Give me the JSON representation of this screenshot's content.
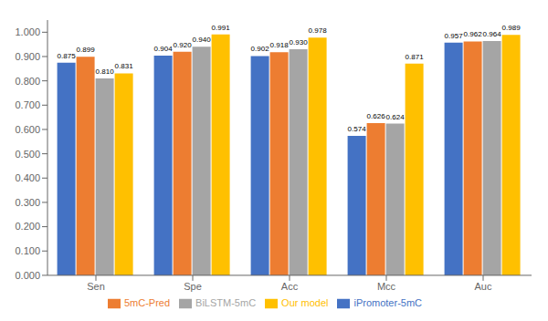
{
  "chart_data": {
    "type": "bar",
    "categories": [
      "Sen",
      "Spe",
      "Acc",
      "Mcc",
      "Auc"
    ],
    "series": [
      {
        "name": "iPromoter-5mC",
        "color": "#4472C4",
        "values": [
          0.875,
          0.904,
          0.902,
          0.574,
          0.957
        ],
        "value_labels": [
          "0.875",
          "0.904",
          "0.902",
          "0.574",
          "0.957"
        ]
      },
      {
        "name": "5mC-Pred",
        "color": "#ED7D31",
        "values": [
          0.899,
          0.92,
          0.918,
          0.626,
          0.962
        ],
        "value_labels": [
          "0.899",
          "0.920",
          "0.918",
          "0.626",
          "0.962"
        ]
      },
      {
        "name": "BiLSTM-5mC",
        "color": "#A5A5A5",
        "values": [
          0.81,
          0.94,
          0.93,
          0.624,
          0.964
        ],
        "value_labels": [
          "0.810",
          "0.940",
          "0.930",
          "0.624",
          "0.964"
        ]
      },
      {
        "name": "Our model",
        "color": "#FFC000",
        "values": [
          0.831,
          0.991,
          0.978,
          0.871,
          0.989
        ],
        "value_labels": [
          "0.831",
          "0.991",
          "0.978",
          "0.871",
          "0.989"
        ]
      }
    ],
    "ylim": [
      0.0,
      1.05
    ],
    "yticks": [
      {
        "value": 0.0,
        "label": "0.000"
      },
      {
        "value": 0.1,
        "label": "0.100"
      },
      {
        "value": 0.2,
        "label": "0.200"
      },
      {
        "value": 0.3,
        "label": "0.300"
      },
      {
        "value": 0.4,
        "label": "0.400"
      },
      {
        "value": 0.5,
        "label": "0.500"
      },
      {
        "value": 0.6,
        "label": "0.600"
      },
      {
        "value": 0.7,
        "label": "0.700"
      },
      {
        "value": 0.8,
        "label": "0.800"
      },
      {
        "value": 0.9,
        "label": "0.900"
      },
      {
        "value": 1.0,
        "label": "1.000"
      }
    ],
    "grid": false,
    "legend": "bottom",
    "data_labels": true
  }
}
